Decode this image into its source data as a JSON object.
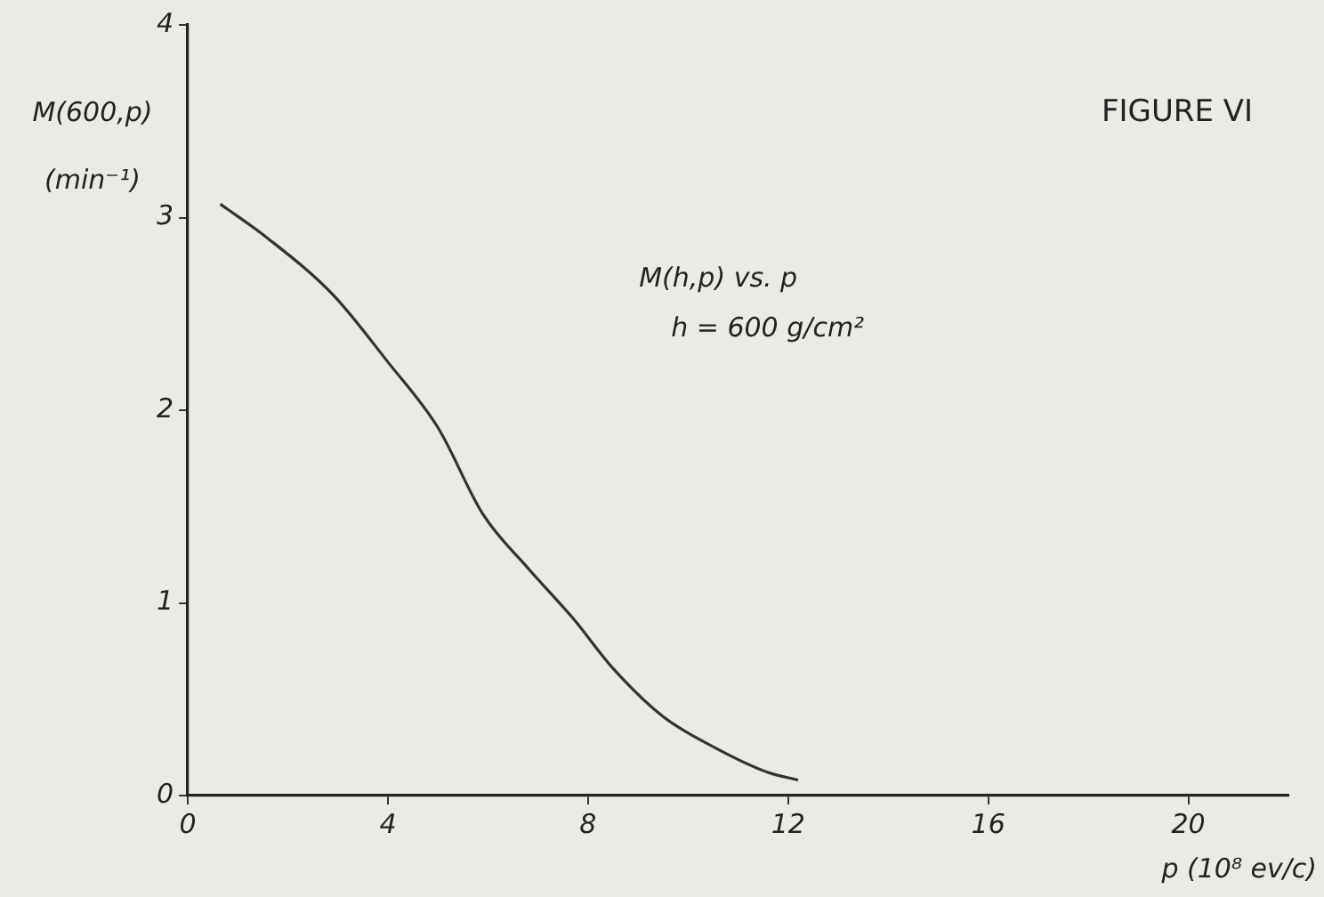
{
  "chart_data": {
    "type": "line",
    "title": "FIGURE VI",
    "ylabel": "M(600,p) (min⁻¹)",
    "xlabel": "p (10⁸ ev/c)",
    "annotations": [
      "M(h,p) vs. p",
      "h = 600 g/cm²"
    ],
    "series": [
      {
        "color": "#333333",
        "x": [
          0.65,
          1.56,
          2.9,
          4.0,
          5.0,
          5.9,
          6.8,
          7.7,
          8.5,
          9.5,
          10.6,
          11.6,
          12.2
        ],
        "values": [
          3.07,
          2.9,
          2.6,
          2.25,
          1.91,
          1.46,
          1.18,
          0.92,
          0.66,
          0.41,
          0.24,
          0.12,
          0.08
        ]
      }
    ],
    "xlim": [
      0,
      22
    ],
    "xticks": [
      0,
      4,
      8,
      12,
      16,
      20
    ],
    "ylim": [
      0,
      4
    ],
    "yticks": [
      0,
      1,
      2,
      3,
      4
    ],
    "grid": false,
    "legend": false,
    "marker": "none",
    "line_style": "solid"
  }
}
